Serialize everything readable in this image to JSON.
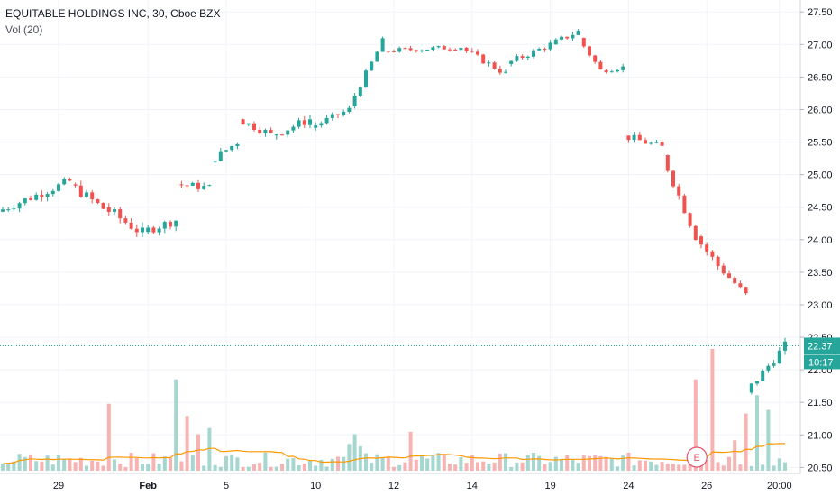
{
  "header": {
    "title": "EQUITABLE HOLDINGS INC, 30, Cboe BZX",
    "indicator": "Vol (20)"
  },
  "colors": {
    "up": "#26a69a",
    "down": "#ef5350",
    "volume_up": "#a5d6cf",
    "volume_down": "#f7b3b2",
    "volume_ma": "#ff9800",
    "grid": "#f0f3fa",
    "axis_text": "#131722",
    "price_line": "#26a69a",
    "earnings_marker": "#e0556b"
  },
  "chart_data": {
    "type": "candlestick",
    "ticker": "EQUITABLE HOLDINGS INC",
    "interval": "30",
    "exchange": "Cboe BZX",
    "grid": true,
    "y_axis": {
      "position": "right",
      "range": [
        20.45,
        27.6
      ],
      "ticks": [
        "27.50",
        "27.00",
        "26.50",
        "26.00",
        "25.50",
        "25.00",
        "24.50",
        "24.00",
        "23.50",
        "23.00",
        "22.50",
        "22.00",
        "21.50",
        "21.00",
        "20.50"
      ]
    },
    "x_axis": {
      "ticks": [
        {
          "label": "29",
          "bar": 10,
          "bold": false
        },
        {
          "label": "Feb",
          "bar": 26,
          "bold": true
        },
        {
          "label": "5",
          "bar": 40,
          "bold": false
        },
        {
          "label": "10",
          "bar": 56,
          "bold": false
        },
        {
          "label": "12",
          "bar": 70,
          "bold": false
        },
        {
          "label": "14",
          "bar": 84,
          "bold": false
        },
        {
          "label": "19",
          "bar": 98,
          "bold": false
        },
        {
          "label": "24",
          "bar": 112,
          "bold": false
        },
        {
          "label": "26",
          "bar": 126,
          "bold": false
        },
        {
          "label": "20:00",
          "bar": 139,
          "bold": false
        }
      ]
    },
    "last_price": {
      "label": "22.37",
      "value": 22.37,
      "countdown": "10:17"
    },
    "earnings_marker": {
      "label": "E",
      "bar": 126
    },
    "segments": [
      {
        "from": 0,
        "to": 12,
        "open": 24.43,
        "close": 24.9,
        "noise": 0.07
      },
      {
        "from": 13,
        "to": 18,
        "open": 24.85,
        "close": 24.48,
        "noise": 0.08
      },
      {
        "from": 19,
        "to": 25,
        "open": 24.5,
        "close": 24.1,
        "noise": 0.09
      },
      {
        "from": 26,
        "to": 31,
        "open": 24.12,
        "close": 24.3,
        "noise": 0.07
      },
      {
        "from": 32,
        "to": 37,
        "open": 24.85,
        "close": 24.8,
        "noise": 0.06
      },
      {
        "from": 38,
        "to": 42,
        "open": 25.2,
        "close": 25.5,
        "noise": 0.06
      },
      {
        "from": 43,
        "to": 48,
        "open": 25.85,
        "close": 25.62,
        "noise": 0.06
      },
      {
        "from": 49,
        "to": 55,
        "open": 25.6,
        "close": 25.85,
        "noise": 0.07
      },
      {
        "from": 56,
        "to": 62,
        "open": 25.72,
        "close": 26.0,
        "noise": 0.05
      },
      {
        "from": 63,
        "to": 68,
        "open": 26.05,
        "close": 27.05,
        "noise": 0.05
      },
      {
        "from": 69,
        "to": 82,
        "open": 26.9,
        "close": 26.96,
        "noise": 0.04
      },
      {
        "from": 83,
        "to": 90,
        "open": 26.95,
        "close": 26.55,
        "noise": 0.05
      },
      {
        "from": 91,
        "to": 98,
        "open": 26.7,
        "close": 27.0,
        "noise": 0.05
      },
      {
        "from": 99,
        "to": 103,
        "open": 27.0,
        "close": 27.2,
        "noise": 0.05
      },
      {
        "from": 104,
        "to": 107,
        "open": 27.1,
        "close": 26.6,
        "noise": 0.05
      },
      {
        "from": 108,
        "to": 111,
        "open": 26.6,
        "close": 26.65,
        "noise": 0.04
      },
      {
        "from": 112,
        "to": 118,
        "open": 25.6,
        "close": 25.42,
        "noise": 0.06
      },
      {
        "from": 119,
        "to": 124,
        "open": 25.3,
        "close": 24.05,
        "noise": 0.07
      },
      {
        "from": 125,
        "to": 128,
        "open": 24.05,
        "close": 23.6,
        "noise": 0.07
      },
      {
        "from": 129,
        "to": 133,
        "open": 23.6,
        "close": 23.15,
        "noise": 0.06
      },
      {
        "from": 134,
        "to": 140,
        "open": 21.65,
        "close": 22.37,
        "noise": 0.07
      }
    ],
    "volume_spikes": [
      {
        "bar": 35,
        "value": 0.3
      },
      {
        "bar": 33,
        "value": 0.45
      },
      {
        "bar": 31,
        "value": 0.75
      },
      {
        "bar": 19,
        "value": 0.55
      },
      {
        "bar": 37,
        "value": 0.35
      },
      {
        "bar": 62,
        "value": 0.22
      },
      {
        "bar": 63,
        "value": 0.3
      },
      {
        "bar": 64,
        "value": 0.2
      },
      {
        "bar": 73,
        "value": 0.32
      },
      {
        "bar": 124,
        "value": 0.75
      },
      {
        "bar": 127,
        "value": 1.0
      },
      {
        "bar": 131,
        "value": 0.25
      },
      {
        "bar": 133,
        "value": 0.47
      },
      {
        "bar": 135,
        "value": 0.62
      },
      {
        "bar": 137,
        "value": 0.5
      }
    ]
  }
}
